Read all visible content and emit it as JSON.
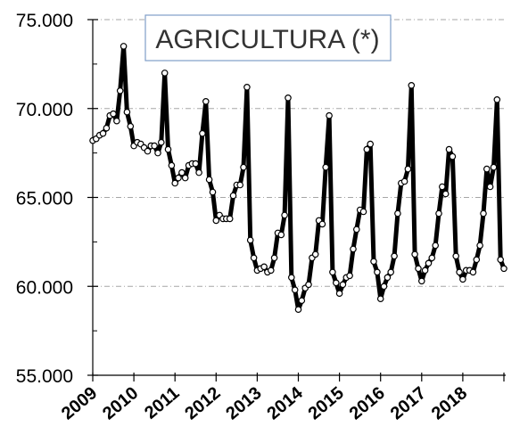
{
  "chart_data": {
    "type": "line",
    "title": "AGRICULTURA (*)",
    "xlabel": "",
    "ylabel": "",
    "ylim": [
      55000,
      75000
    ],
    "y_ticks": [
      "55.000",
      "60.000",
      "65.000",
      "70.000",
      "75.000"
    ],
    "y_tick_values": [
      55000,
      60000,
      65000,
      70000,
      75000
    ],
    "x_ticks": [
      "2009",
      "2010",
      "2011",
      "2012",
      "2013",
      "2014",
      "2015",
      "2016",
      "2017",
      "2018"
    ],
    "x_start_year": 2009,
    "months_per_year": 12,
    "grid": true,
    "legend": "none",
    "series": [
      {
        "color": "#000000",
        "marker_fill": "#ffffff",
        "values": [
          68200,
          68300,
          68500,
          68600,
          68900,
          69600,
          69700,
          69300,
          71000,
          73500,
          69800,
          69000,
          67900,
          68100,
          68000,
          67800,
          67600,
          67900,
          67900,
          67500,
          68100,
          72000,
          67700,
          66800,
          65800,
          66100,
          66400,
          66100,
          66800,
          66900,
          66900,
          66400,
          68600,
          70400,
          66000,
          65300,
          63700,
          64000,
          63800,
          63800,
          63800,
          65100,
          65700,
          65700,
          66700,
          71200,
          62600,
          61600,
          60900,
          61000,
          61100,
          60800,
          60900,
          61600,
          63000,
          62900,
          64000,
          70600,
          60500,
          59800,
          58700,
          59200,
          59900,
          60100,
          61600,
          61800,
          63700,
          63500,
          66700,
          69600,
          60800,
          60200,
          59600,
          60100,
          60500,
          60600,
          62100,
          63200,
          64300,
          64200,
          67700,
          68000,
          61400,
          60800,
          59300,
          60000,
          60500,
          60800,
          61700,
          64100,
          65800,
          65900,
          66600,
          71300,
          61800,
          61000,
          60300,
          60900,
          61300,
          61600,
          62300,
          64100,
          65600,
          65200,
          67700,
          67300,
          61700,
          60800,
          60400,
          60900,
          60900,
          60800,
          61500,
          62300,
          64100,
          66600,
          65600,
          66700,
          70500,
          61500,
          61000
        ]
      }
    ]
  }
}
